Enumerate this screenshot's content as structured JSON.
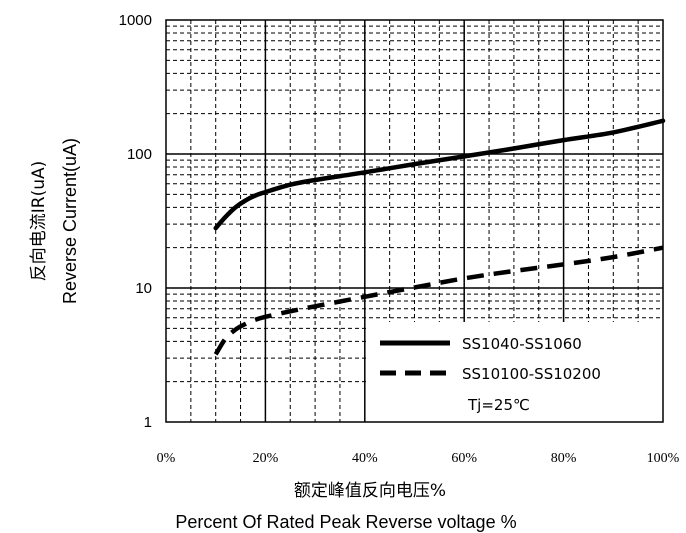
{
  "chart_data": {
    "type": "line",
    "x_unit": "percent",
    "xlim": [
      0,
      100
    ],
    "ylim": [
      1,
      1000
    ],
    "yscale": "log",
    "grid": true,
    "x_ticks": [
      "0%",
      "20%",
      "40%",
      "60%",
      "80%",
      "100%"
    ],
    "y_ticks": [
      "1",
      "10",
      "100",
      "1000"
    ],
    "xlabel_cn": "额定峰值反向电压%",
    "xlabel_en": "Percent Of Rated Peak Reverse voltage %",
    "ylabel_cn": "反向电流IR(uA)",
    "ylabel_en": "Reverse Current(uA)",
    "legend_position": "bottom-right",
    "series": [
      {
        "name": "SS1040-SS1060",
        "style": "solid",
        "x": [
          10,
          12,
          14,
          16,
          18,
          20,
          25,
          30,
          40,
          50,
          60,
          70,
          80,
          90,
          100
        ],
        "y": [
          28,
          34,
          40,
          45,
          49,
          52,
          59,
          64,
          73,
          84,
          96,
          110,
          127,
          145,
          177
        ]
      },
      {
        "name": "SS10100-SS10200",
        "style": "dashed",
        "x": [
          10,
          12,
          14,
          16,
          18,
          20,
          25,
          30,
          40,
          50,
          60,
          70,
          80,
          90,
          100
        ],
        "y": [
          3.2,
          4.2,
          4.9,
          5.4,
          5.8,
          6.1,
          6.7,
          7.3,
          8.6,
          10.1,
          11.8,
          13.4,
          15.0,
          17.0,
          20.0
        ]
      }
    ],
    "legend_note": "Tj=25℃"
  },
  "colors": {
    "line": "#000000",
    "grid": "#000000"
  }
}
